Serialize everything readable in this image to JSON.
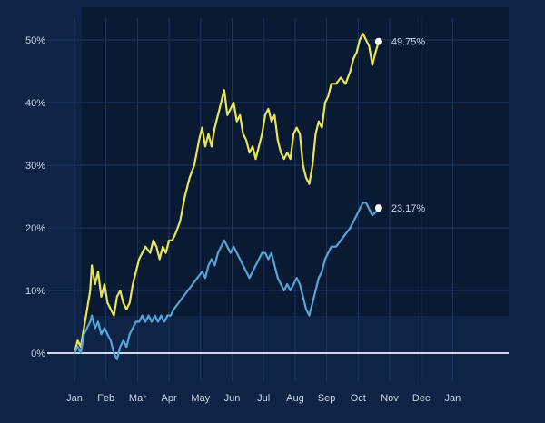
{
  "colors": {
    "background": "#0f2347",
    "plot_shade": "#0b1a33",
    "grid": "#1c3562",
    "axis_text": "#c9d3e6",
    "baseline": "#cfd8e8",
    "end_dot": "#ffffff"
  },
  "chart_data": {
    "type": "line",
    "title": "",
    "xlabel": "",
    "ylabel": "",
    "x_ticks": [
      "Jan",
      "Feb",
      "Mar",
      "Apr",
      "May",
      "Jun",
      "Jul",
      "Aug",
      "Sep",
      "Oct",
      "Nov",
      "Dec",
      "Jan"
    ],
    "y_ticks": [
      "0%",
      "10%",
      "20%",
      "30%",
      "40%",
      "50%"
    ],
    "ylim": [
      -2,
      53
    ],
    "grid": true,
    "legend": "none",
    "series": [
      {
        "color": "#e7e55a",
        "end_label": "49.75%",
        "points": [
          [
            0.0,
            0
          ],
          [
            0.1,
            2
          ],
          [
            0.2,
            1
          ],
          [
            0.3,
            4
          ],
          [
            0.4,
            7
          ],
          [
            0.5,
            10
          ],
          [
            0.55,
            14
          ],
          [
            0.65,
            11
          ],
          [
            0.75,
            13
          ],
          [
            0.85,
            9
          ],
          [
            0.95,
            11
          ],
          [
            1.05,
            8
          ],
          [
            1.15,
            7
          ],
          [
            1.25,
            6
          ],
          [
            1.35,
            9
          ],
          [
            1.45,
            10
          ],
          [
            1.55,
            8
          ],
          [
            1.65,
            7
          ],
          [
            1.75,
            8
          ],
          [
            1.85,
            11
          ],
          [
            1.95,
            13
          ],
          [
            2.05,
            15
          ],
          [
            2.15,
            16
          ],
          [
            2.25,
            17
          ],
          [
            2.4,
            16
          ],
          [
            2.5,
            18
          ],
          [
            2.6,
            17
          ],
          [
            2.7,
            15
          ],
          [
            2.8,
            17
          ],
          [
            2.9,
            16
          ],
          [
            3.0,
            18
          ],
          [
            3.1,
            18
          ],
          [
            3.2,
            19
          ],
          [
            3.35,
            21
          ],
          [
            3.5,
            25
          ],
          [
            3.65,
            28
          ],
          [
            3.8,
            30
          ],
          [
            3.95,
            34
          ],
          [
            4.05,
            36
          ],
          [
            4.15,
            33
          ],
          [
            4.25,
            35
          ],
          [
            4.35,
            33
          ],
          [
            4.45,
            36
          ],
          [
            4.55,
            38
          ],
          [
            4.65,
            40
          ],
          [
            4.75,
            42
          ],
          [
            4.85,
            38
          ],
          [
            4.95,
            39
          ],
          [
            5.05,
            40
          ],
          [
            5.15,
            37
          ],
          [
            5.25,
            38
          ],
          [
            5.35,
            35
          ],
          [
            5.45,
            34
          ],
          [
            5.55,
            32
          ],
          [
            5.65,
            33
          ],
          [
            5.75,
            31
          ],
          [
            5.85,
            33
          ],
          [
            5.95,
            35
          ],
          [
            6.05,
            38
          ],
          [
            6.15,
            39
          ],
          [
            6.25,
            37
          ],
          [
            6.35,
            38
          ],
          [
            6.45,
            34
          ],
          [
            6.55,
            32
          ],
          [
            6.65,
            31
          ],
          [
            6.75,
            32
          ],
          [
            6.85,
            31
          ],
          [
            6.95,
            35
          ],
          [
            7.05,
            36
          ],
          [
            7.15,
            35
          ],
          [
            7.25,
            30
          ],
          [
            7.35,
            28
          ],
          [
            7.45,
            27
          ],
          [
            7.55,
            30
          ],
          [
            7.65,
            35
          ],
          [
            7.75,
            37
          ],
          [
            7.85,
            36
          ],
          [
            7.95,
            40
          ],
          [
            8.05,
            41
          ],
          [
            8.15,
            43
          ],
          [
            8.3,
            43
          ],
          [
            8.45,
            44
          ],
          [
            8.6,
            43
          ],
          [
            8.75,
            45
          ],
          [
            8.85,
            47
          ],
          [
            8.95,
            48
          ],
          [
            9.05,
            50
          ],
          [
            9.15,
            51
          ],
          [
            9.25,
            50
          ],
          [
            9.35,
            49
          ],
          [
            9.45,
            46
          ],
          [
            9.55,
            48
          ],
          [
            9.65,
            49.75
          ]
        ]
      },
      {
        "color": "#55a5d8",
        "end_label": "23.17%",
        "points": [
          [
            0.0,
            0
          ],
          [
            0.1,
            1
          ],
          [
            0.2,
            0
          ],
          [
            0.3,
            3
          ],
          [
            0.4,
            4
          ],
          [
            0.5,
            5
          ],
          [
            0.55,
            6
          ],
          [
            0.65,
            4
          ],
          [
            0.75,
            5
          ],
          [
            0.85,
            3
          ],
          [
            0.95,
            4
          ],
          [
            1.05,
            3
          ],
          [
            1.15,
            2
          ],
          [
            1.25,
            0
          ],
          [
            1.35,
            -1
          ],
          [
            1.45,
            1
          ],
          [
            1.55,
            2
          ],
          [
            1.65,
            1
          ],
          [
            1.75,
            3
          ],
          [
            1.85,
            4
          ],
          [
            1.95,
            5
          ],
          [
            2.05,
            5
          ],
          [
            2.15,
            6
          ],
          [
            2.25,
            5
          ],
          [
            2.35,
            6
          ],
          [
            2.45,
            5
          ],
          [
            2.55,
            6
          ],
          [
            2.65,
            5
          ],
          [
            2.75,
            6
          ],
          [
            2.85,
            5
          ],
          [
            2.95,
            6
          ],
          [
            3.05,
            6
          ],
          [
            3.15,
            7
          ],
          [
            3.3,
            8
          ],
          [
            3.45,
            9
          ],
          [
            3.6,
            10
          ],
          [
            3.75,
            11
          ],
          [
            3.9,
            12
          ],
          [
            4.05,
            13
          ],
          [
            4.15,
            12
          ],
          [
            4.25,
            14
          ],
          [
            4.35,
            15
          ],
          [
            4.45,
            14
          ],
          [
            4.55,
            16
          ],
          [
            4.65,
            17
          ],
          [
            4.75,
            18
          ],
          [
            4.85,
            17
          ],
          [
            4.95,
            16
          ],
          [
            5.05,
            17
          ],
          [
            5.15,
            16
          ],
          [
            5.25,
            15
          ],
          [
            5.35,
            14
          ],
          [
            5.45,
            13
          ],
          [
            5.55,
            12
          ],
          [
            5.65,
            13
          ],
          [
            5.75,
            14
          ],
          [
            5.85,
            15
          ],
          [
            5.95,
            16
          ],
          [
            6.05,
            16
          ],
          [
            6.15,
            15
          ],
          [
            6.25,
            16
          ],
          [
            6.35,
            14
          ],
          [
            6.45,
            12
          ],
          [
            6.55,
            11
          ],
          [
            6.65,
            10
          ],
          [
            6.75,
            11
          ],
          [
            6.85,
            10
          ],
          [
            6.95,
            11
          ],
          [
            7.05,
            12
          ],
          [
            7.15,
            11
          ],
          [
            7.25,
            9
          ],
          [
            7.35,
            7
          ],
          [
            7.45,
            6
          ],
          [
            7.55,
            8
          ],
          [
            7.65,
            10
          ],
          [
            7.75,
            12
          ],
          [
            7.85,
            13
          ],
          [
            7.95,
            15
          ],
          [
            8.05,
            16
          ],
          [
            8.15,
            17
          ],
          [
            8.3,
            17
          ],
          [
            8.45,
            18
          ],
          [
            8.6,
            19
          ],
          [
            8.75,
            20
          ],
          [
            8.85,
            21
          ],
          [
            8.95,
            22
          ],
          [
            9.05,
            23
          ],
          [
            9.15,
            24
          ],
          [
            9.25,
            24
          ],
          [
            9.35,
            23
          ],
          [
            9.45,
            22
          ],
          [
            9.55,
            22.5
          ],
          [
            9.65,
            23.17
          ]
        ]
      }
    ]
  }
}
